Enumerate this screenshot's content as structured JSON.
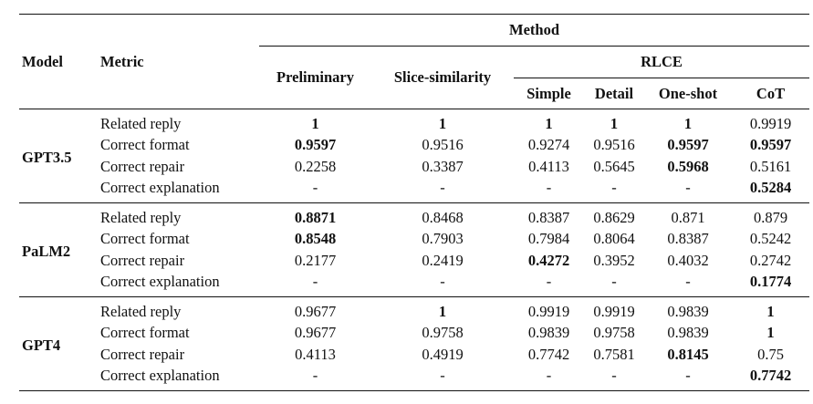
{
  "header": {
    "model": "Model",
    "metric": "Metric",
    "method": "Method",
    "preliminary": "Preliminary",
    "slice": "Slice-similarity",
    "rlce": "RLCE",
    "simple": "Simple",
    "detail": "Detail",
    "oneshot": "One-shot",
    "cot": "CoT"
  },
  "groups": [
    {
      "model": "GPT3.5",
      "rows": [
        {
          "metric": "Related reply",
          "cells": [
            {
              "v": "1",
              "b": true
            },
            {
              "v": "1",
              "b": true
            },
            {
              "v": "1",
              "b": true
            },
            {
              "v": "1",
              "b": true
            },
            {
              "v": "1",
              "b": true
            },
            {
              "v": "0.9919",
              "b": false
            }
          ]
        },
        {
          "metric": "Correct format",
          "cells": [
            {
              "v": "0.9597",
              "b": true
            },
            {
              "v": "0.9516",
              "b": false
            },
            {
              "v": "0.9274",
              "b": false
            },
            {
              "v": "0.9516",
              "b": false
            },
            {
              "v": "0.9597",
              "b": true
            },
            {
              "v": "0.9597",
              "b": true
            }
          ]
        },
        {
          "metric": "Correct repair",
          "cells": [
            {
              "v": "0.2258",
              "b": false
            },
            {
              "v": "0.3387",
              "b": false
            },
            {
              "v": "0.4113",
              "b": false
            },
            {
              "v": "0.5645",
              "b": false
            },
            {
              "v": "0.5968",
              "b": true
            },
            {
              "v": "0.5161",
              "b": false
            }
          ]
        },
        {
          "metric": "Correct explanation",
          "cells": [
            {
              "v": "-",
              "b": false
            },
            {
              "v": "-",
              "b": false
            },
            {
              "v": "-",
              "b": false
            },
            {
              "v": "-",
              "b": false
            },
            {
              "v": "-",
              "b": false
            },
            {
              "v": "0.5284",
              "b": true
            }
          ]
        }
      ]
    },
    {
      "model": "PaLM2",
      "rows": [
        {
          "metric": "Related reply",
          "cells": [
            {
              "v": "0.8871",
              "b": true
            },
            {
              "v": "0.8468",
              "b": false
            },
            {
              "v": "0.8387",
              "b": false
            },
            {
              "v": "0.8629",
              "b": false
            },
            {
              "v": "0.871",
              "b": false
            },
            {
              "v": "0.879",
              "b": false
            }
          ]
        },
        {
          "metric": "Correct format",
          "cells": [
            {
              "v": "0.8548",
              "b": true
            },
            {
              "v": "0.7903",
              "b": false
            },
            {
              "v": "0.7984",
              "b": false
            },
            {
              "v": "0.8064",
              "b": false
            },
            {
              "v": "0.8387",
              "b": false
            },
            {
              "v": "0.5242",
              "b": false
            }
          ]
        },
        {
          "metric": "Correct repair",
          "cells": [
            {
              "v": "0.2177",
              "b": false
            },
            {
              "v": "0.2419",
              "b": false
            },
            {
              "v": "0.4272",
              "b": true
            },
            {
              "v": "0.3952",
              "b": false
            },
            {
              "v": "0.4032",
              "b": false
            },
            {
              "v": "0.2742",
              "b": false
            }
          ]
        },
        {
          "metric": "Correct explanation",
          "cells": [
            {
              "v": "-",
              "b": false
            },
            {
              "v": "-",
              "b": false
            },
            {
              "v": "-",
              "b": false
            },
            {
              "v": "-",
              "b": false
            },
            {
              "v": "-",
              "b": false
            },
            {
              "v": "0.1774",
              "b": true
            }
          ]
        }
      ]
    },
    {
      "model": "GPT4",
      "rows": [
        {
          "metric": "Related reply",
          "cells": [
            {
              "v": "0.9677",
              "b": false
            },
            {
              "v": "1",
              "b": true
            },
            {
              "v": "0.9919",
              "b": false
            },
            {
              "v": "0.9919",
              "b": false
            },
            {
              "v": "0.9839",
              "b": false
            },
            {
              "v": "1",
              "b": true
            }
          ]
        },
        {
          "metric": "Correct format",
          "cells": [
            {
              "v": "0.9677",
              "b": false
            },
            {
              "v": "0.9758",
              "b": false
            },
            {
              "v": "0.9839",
              "b": false
            },
            {
              "v": "0.9758",
              "b": false
            },
            {
              "v": "0.9839",
              "b": false
            },
            {
              "v": "1",
              "b": true
            }
          ]
        },
        {
          "metric": "Correct repair",
          "cells": [
            {
              "v": "0.4113",
              "b": false
            },
            {
              "v": "0.4919",
              "b": false
            },
            {
              "v": "0.7742",
              "b": false
            },
            {
              "v": "0.7581",
              "b": false
            },
            {
              "v": "0.8145",
              "b": true
            },
            {
              "v": "0.75",
              "b": false
            }
          ]
        },
        {
          "metric": "Correct explanation",
          "cells": [
            {
              "v": "-",
              "b": false
            },
            {
              "v": "-",
              "b": false
            },
            {
              "v": "-",
              "b": false
            },
            {
              "v": "-",
              "b": false
            },
            {
              "v": "-",
              "b": false
            },
            {
              "v": "0.7742",
              "b": true
            }
          ]
        }
      ]
    }
  ]
}
